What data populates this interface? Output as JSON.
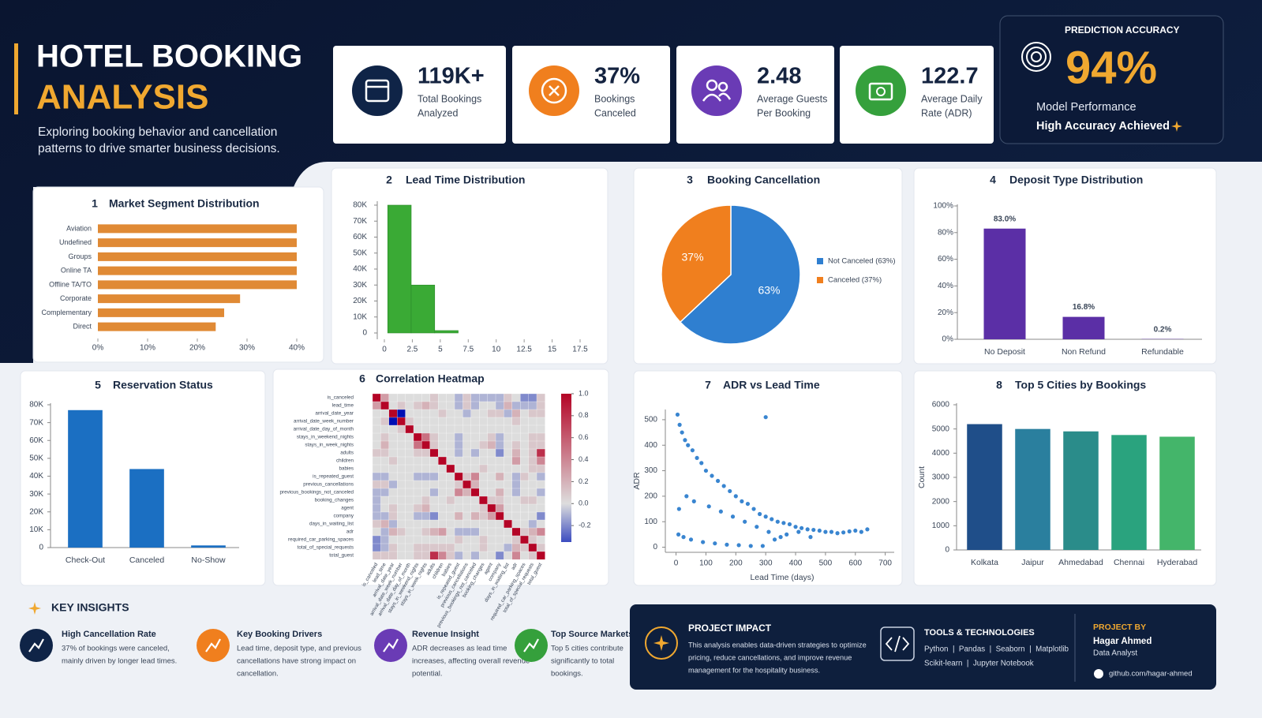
{
  "header": {
    "title_line1": "HOTEL BOOKING",
    "title_line2": "ANALYSIS",
    "subtitle_lines": [
      "Exploring booking behavior and cancellation",
      "patterns to drive smarter business decisions."
    ]
  },
  "kpis": [
    {
      "value": "119K+",
      "label_lines": [
        "Total Bookings",
        "Analyzed"
      ]
    },
    {
      "value": "37%",
      "label_lines": [
        "Bookings",
        "Canceled"
      ]
    },
    {
      "value": "2.48",
      "label_lines": [
        "Average Guests",
        "Per Booking"
      ]
    },
    {
      "value": "122.7",
      "label_lines": [
        "Average Daily",
        "Rate (ADR)"
      ]
    }
  ],
  "prediction": {
    "heading": "PREDICTION ACCURACY",
    "value": "94%",
    "caption": "Model Performance",
    "highlight": "High Accuracy Achieved"
  },
  "chart_data": [
    {
      "type": "hbar",
      "number": "1",
      "title": "Market Segment Distribution",
      "categories": [
        "Aviation",
        "Undefined",
        "Groups",
        "Online TA",
        "Offline TA/TO",
        "Corporate",
        "Complementary",
        "Direct"
      ],
      "values": [
        40,
        40,
        40,
        40,
        40,
        28.6,
        25.4,
        23.7
      ],
      "color": "#e08a35",
      "xlim": [
        0,
        40
      ],
      "xticks": [
        {
          "value": 0,
          "label": "0%"
        },
        {
          "value": 10,
          "label": "10%"
        },
        {
          "value": 20,
          "label": "20%"
        },
        {
          "value": 30,
          "label": "30%"
        },
        {
          "value": 40,
          "label": "40%"
        }
      ]
    },
    {
      "type": "histogram",
      "number": "2",
      "title": "Lead Time Distribution",
      "bins": [
        0.3,
        2.4,
        4.5,
        6.6
      ],
      "values": [
        80000,
        30000,
        1500
      ],
      "color": "#3aaa35",
      "xlim": [
        0,
        17.5
      ],
      "xticks": [
        0,
        2.5,
        5,
        7.5,
        10,
        12.5,
        15,
        17.5
      ],
      "ylim": [
        0,
        80000
      ],
      "yticks": [
        0,
        {
          "value": 10000,
          "label": "10K"
        },
        {
          "value": 20000,
          "label": "20K"
        },
        {
          "value": 30000,
          "label": "30K"
        },
        {
          "value": 40000,
          "label": "40K"
        },
        {
          "value": 50000,
          "label": "50K"
        },
        {
          "value": 60000,
          "label": "60K"
        },
        {
          "value": 70000,
          "label": "70K"
        },
        {
          "value": 80000,
          "label": "80K"
        }
      ]
    },
    {
      "type": "pie",
      "number": "3",
      "title": "Booking Cancellation",
      "categories": [
        "Not Canceled (63%)",
        "Canceled (37%)"
      ],
      "values": [
        63,
        37
      ],
      "value_labels": [
        "63%",
        "37%"
      ],
      "colors": [
        "#2f7fd0",
        "#f07f1e"
      ]
    },
    {
      "type": "bar",
      "number": "4",
      "title": "Deposit Type Distribution",
      "categories": [
        "No Deposit",
        "Non Refund",
        "Refundable"
      ],
      "values": [
        83.0,
        16.8,
        0.2
      ],
      "value_labels": [
        "83.0%",
        "16.8%",
        "0.2%"
      ],
      "color": "#5b2fa6",
      "ylim": [
        0,
        100
      ],
      "yticks": [
        {
          "value": 0,
          "label": "0%"
        },
        {
          "value": 20,
          "label": "20%"
        },
        {
          "value": 40,
          "label": "40%"
        },
        {
          "value": 60,
          "label": "60%"
        },
        {
          "value": 80,
          "label": "80%"
        },
        {
          "value": 100,
          "label": "100%"
        }
      ]
    },
    {
      "type": "bar",
      "number": "5",
      "title": "Reservation Status",
      "categories": [
        "Check-Out",
        "Canceled",
        "No-Show"
      ],
      "values": [
        77000,
        44000,
        1200
      ],
      "color": "#1b6fc2",
      "ylim": [
        0,
        80000
      ],
      "yticks": [
        0,
        {
          "value": 10000,
          "label": "10K"
        },
        {
          "value": 20000,
          "label": "20K"
        },
        {
          "value": 30000,
          "label": "30K"
        },
        {
          "value": 40000,
          "label": "40K"
        },
        {
          "value": 50000,
          "label": "50K"
        },
        {
          "value": 60000,
          "label": "60K"
        },
        {
          "value": 70000,
          "label": "70K"
        },
        {
          "value": 80000,
          "label": "80K"
        }
      ]
    },
    {
      "type": "heatmap",
      "number": "6",
      "title": "Correlation Heatmap",
      "labels": [
        "is_canceled",
        "lead_time",
        "arrival_date_year",
        "arrival_date_week_number",
        "arrival_date_day_of_month",
        "stays_in_weekend_nights",
        "stays_in_week_nights",
        "adults",
        "children",
        "babies",
        "is_repeated_guest",
        "previous_cancellations",
        "previous_bookings_not_canceled",
        "booking_changes",
        "agent",
        "company",
        "days_in_waiting_list",
        "adr",
        "required_car_parking_spaces",
        "total_of_special_requests",
        "total_guest"
      ],
      "matrix": [
        [
          1,
          0.3,
          0,
          0,
          0,
          0,
          0,
          0.1,
          0,
          0,
          -0.1,
          0.1,
          -0.1,
          -0.1,
          -0.1,
          -0.1,
          0.1,
          0,
          -0.2,
          -0.2,
          0.1
        ],
        [
          0.3,
          1,
          0,
          0.1,
          0,
          0.1,
          0.2,
          0.1,
          0,
          0,
          -0.1,
          0.1,
          -0.1,
          0,
          0,
          -0.1,
          0.2,
          -0.1,
          -0.1,
          -0.1,
          0.1
        ],
        [
          0,
          0,
          1,
          -0.5,
          0,
          0,
          0,
          0,
          0.1,
          0,
          0,
          -0.1,
          0,
          0,
          0.1,
          0.1,
          -0.1,
          0.2,
          0,
          0.1,
          0.1
        ],
        [
          0,
          0.1,
          -0.5,
          1,
          0.1,
          0,
          0,
          0,
          0,
          0,
          0,
          0,
          0,
          0,
          0,
          0,
          0,
          0.1,
          0,
          0,
          0
        ],
        [
          0,
          0,
          0,
          0.1,
          1,
          0,
          0,
          0,
          0,
          0,
          0,
          0,
          0,
          0,
          0,
          0,
          0,
          0,
          0,
          0,
          0
        ],
        [
          0,
          0.1,
          0,
          0,
          0,
          1,
          0.5,
          0.1,
          0,
          0,
          -0.1,
          0,
          0,
          0,
          0.1,
          -0.1,
          0,
          0,
          0,
          0.1,
          0.1
        ],
        [
          0,
          0.2,
          0,
          0,
          0,
          0.5,
          1,
          0.1,
          0,
          0,
          -0.1,
          0,
          0,
          0.1,
          0.2,
          -0.1,
          0,
          0.1,
          0,
          0.1,
          0.1
        ],
        [
          0.1,
          0.1,
          0,
          0,
          0,
          0.1,
          0.1,
          1,
          0,
          0,
          -0.1,
          0,
          -0.1,
          0,
          0,
          -0.2,
          0,
          0.2,
          0,
          0.1,
          0.8
        ],
        [
          0,
          0,
          0.1,
          0,
          0,
          0,
          0,
          0,
          1,
          0,
          0,
          0,
          0,
          0,
          0,
          0,
          0,
          0.3,
          0,
          0.1,
          0.4
        ],
        [
          0,
          0,
          0,
          0,
          0,
          0,
          0,
          0,
          0,
          1,
          0,
          0,
          0,
          0.1,
          0,
          0,
          0,
          0,
          0,
          0.1,
          0.1
        ],
        [
          -0.1,
          -0.1,
          0,
          0,
          0,
          -0.1,
          -0.1,
          -0.1,
          0,
          0,
          1,
          0.1,
          0.4,
          0,
          0,
          0.2,
          0,
          -0.1,
          0.1,
          0,
          -0.1
        ],
        [
          0.1,
          0.1,
          -0.1,
          0,
          0,
          0,
          0,
          0,
          0,
          0,
          0.1,
          1,
          0.2,
          0,
          0,
          0,
          0,
          -0.1,
          0,
          0,
          0
        ],
        [
          -0.1,
          -0.1,
          0,
          0,
          0,
          0,
          0,
          -0.1,
          0,
          0,
          0.4,
          0.2,
          1,
          0,
          0,
          0.2,
          0,
          -0.1,
          0,
          0,
          -0.1
        ],
        [
          -0.1,
          0,
          0,
          0,
          0,
          0,
          0.1,
          0,
          0,
          0.1,
          0,
          0,
          0,
          1,
          0.1,
          0.1,
          0,
          0,
          0.1,
          0.1,
          0
        ],
        [
          -0.1,
          0,
          0.1,
          0,
          0,
          0.1,
          0.2,
          0,
          0,
          0,
          0,
          0,
          0,
          0.1,
          1,
          0.3,
          0,
          0,
          0,
          0,
          0
        ],
        [
          -0.1,
          -0.1,
          0.1,
          0,
          0,
          -0.1,
          -0.1,
          -0.2,
          0,
          0,
          0.2,
          0,
          0.2,
          0.1,
          0.3,
          1,
          0,
          0,
          0,
          0,
          -0.2
        ],
        [
          0.1,
          0.2,
          -0.1,
          0,
          0,
          0,
          0,
          0,
          0,
          0,
          0,
          0,
          0,
          0,
          0,
          0,
          1,
          0,
          0,
          -0.1,
          0
        ],
        [
          0,
          -0.1,
          0.2,
          0.1,
          0,
          0,
          0.1,
          0.2,
          0.3,
          0,
          -0.1,
          -0.1,
          -0.1,
          0,
          0,
          0,
          0,
          1,
          0.1,
          0.2,
          0.4
        ],
        [
          -0.2,
          -0.1,
          0,
          0,
          0,
          0,
          0,
          0,
          0,
          0,
          0.1,
          0,
          0,
          0.1,
          0,
          0,
          0,
          0.1,
          1,
          0.1,
          0
        ],
        [
          -0.2,
          -0.1,
          0.1,
          0,
          0,
          0.1,
          0.1,
          0.1,
          0.1,
          0.1,
          0,
          0,
          0,
          0.1,
          0,
          0,
          -0.1,
          0.2,
          0.1,
          1,
          0.1
        ],
        [
          0.1,
          0.1,
          0.1,
          0,
          0,
          0.1,
          0.1,
          0.8,
          0.4,
          0.1,
          -0.1,
          0,
          -0.1,
          0,
          0,
          -0.2,
          0,
          0.4,
          0,
          0.1,
          1
        ]
      ],
      "clim": [
        -0.35,
        1
      ],
      "colorbar_ticks": [
        {
          "value": 1,
          "label": "1.0"
        },
        0.8,
        0.6,
        0.4,
        0.2,
        {
          "value": 0,
          "label": "0.0"
        },
        -0.2
      ]
    },
    {
      "type": "scatter",
      "number": "7",
      "title": "ADR vs Lead Time",
      "xlabel": "Lead Time (days)",
      "ylabel": "ADR",
      "x": [
        5,
        12,
        20,
        30,
        40,
        55,
        70,
        85,
        100,
        120,
        140,
        160,
        180,
        200,
        220,
        240,
        260,
        280,
        300,
        320,
        340,
        360,
        380,
        400,
        420,
        440,
        460,
        480,
        500,
        520,
        540,
        560,
        580,
        600,
        620,
        640,
        8,
        25,
        50,
        90,
        130,
        170,
        210,
        250,
        290,
        330,
        370,
        410,
        450,
        10,
        35,
        60,
        110,
        150,
        190,
        230,
        270,
        310,
        350,
        300
      ],
      "y": [
        520,
        480,
        450,
        420,
        400,
        380,
        350,
        330,
        300,
        280,
        260,
        240,
        220,
        200,
        180,
        170,
        150,
        130,
        120,
        110,
        100,
        95,
        90,
        80,
        75,
        70,
        68,
        65,
        60,
        60,
        55,
        58,
        62,
        65,
        60,
        70,
        50,
        40,
        30,
        20,
        15,
        10,
        8,
        5,
        5,
        30,
        50,
        60,
        40,
        150,
        200,
        180,
        160,
        140,
        120,
        100,
        80,
        60,
        40,
        510
      ],
      "color": "#1670c8",
      "xlim": [
        -20,
        730
      ],
      "xticks": [
        0,
        100,
        200,
        300,
        400,
        500,
        600,
        700
      ],
      "ylim": [
        -20,
        540
      ],
      "yticks": [
        0,
        100,
        200,
        300,
        400,
        500
      ]
    },
    {
      "type": "bar",
      "number": "8",
      "title": "Top 5 Cities by Bookings",
      "ylabel": "Count",
      "categories": [
        "Kolkata",
        "Jaipur",
        "Ahmedabad",
        "Chennai",
        "Hyderabad"
      ],
      "values": [
        5200,
        5000,
        4900,
        4750,
        4680
      ],
      "colors": [
        "#1f4e89",
        "#2a7f9e",
        "#2a8c8a",
        "#2aa37e",
        "#44b56a"
      ],
      "ylim": [
        0,
        6000
      ],
      "yticks": [
        0,
        1000,
        2000,
        3000,
        4000,
        5000,
        6000
      ]
    }
  ],
  "key_insights": {
    "heading": "KEY INSIGHTS",
    "items": [
      {
        "title": "High Cancellation Rate",
        "lines": [
          "37% of bookings were canceled,",
          "mainly driven by longer lead times."
        ]
      },
      {
        "title": "Key Booking Drivers",
        "lines": [
          "Lead time, deposit type, and previous",
          "cancellations have strong impact on",
          "cancellation."
        ]
      },
      {
        "title": "Revenue Insight",
        "lines": [
          "ADR decreases as lead time",
          "increases, affecting overall revenue",
          "potential."
        ]
      },
      {
        "title": "Top Source Markets",
        "lines": [
          "Top 5 cities contribute",
          "significantly to total",
          "bookings."
        ]
      }
    ]
  },
  "project_impact": {
    "heading": "PROJECT IMPACT",
    "lines": [
      "This analysis enables data-driven strategies to optimize",
      "pricing, reduce cancellations, and improve revenue",
      "management for the hospitality business."
    ]
  },
  "tools": {
    "heading": "TOOLS & TECHNOLOGIES",
    "lines": [
      "Python  |  Pandas  |  Seaborn  |  Matplotlib",
      "Scikit-learn  |  Jupyter Notebook"
    ]
  },
  "author": {
    "heading": "PROJECT BY",
    "name": "Hagar Ahmed",
    "role": "Data Analyst",
    "link": "github.com/hagar-ahmed"
  }
}
